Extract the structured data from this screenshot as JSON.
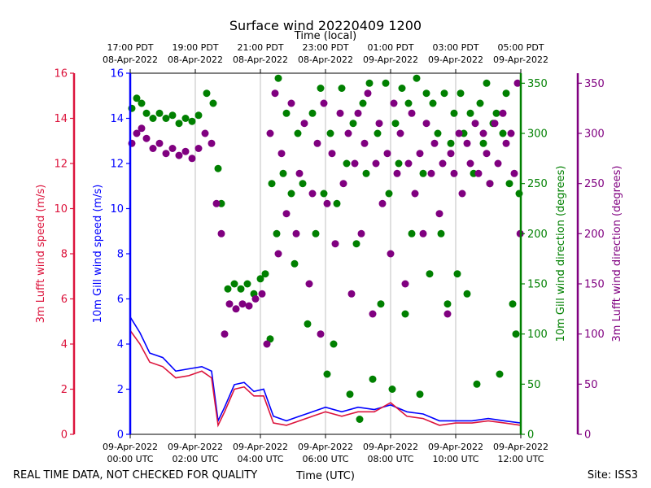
{
  "chart_data": {
    "type": "scatter",
    "title": "Surface wind 20220409 1200",
    "top_xlabel": "Time (local)",
    "xlabel": "Time (UTC)",
    "footer_left": "REAL TIME DATA, NOT CHECKED FOR QUALITY",
    "footer_right": "Site: ISS3",
    "xlim": [
      0,
      12
    ],
    "x_unit": "hours since 09-Apr-2022 00:00 UTC",
    "bottom_ticks": [
      {
        "x": 0,
        "line1": "09-Apr-2022",
        "line2": "00:00 UTC"
      },
      {
        "x": 2,
        "line1": "09-Apr-2022",
        "line2": "02:00 UTC"
      },
      {
        "x": 4,
        "line1": "09-Apr-2022",
        "line2": "04:00 UTC"
      },
      {
        "x": 6,
        "line1": "09-Apr-2022",
        "line2": "06:00 UTC"
      },
      {
        "x": 8,
        "line1": "09-Apr-2022",
        "line2": "08:00 UTC"
      },
      {
        "x": 10,
        "line1": "09-Apr-2022",
        "line2": "10:00 UTC"
      },
      {
        "x": 12,
        "line1": "09-Apr-2022",
        "line2": "12:00 UTC"
      }
    ],
    "top_ticks": [
      {
        "x": 0,
        "line1": "17:00 PDT",
        "line2": "08-Apr-2022"
      },
      {
        "x": 2,
        "line1": "19:00 PDT",
        "line2": "08-Apr-2022"
      },
      {
        "x": 4,
        "line1": "21:00 PDT",
        "line2": "08-Apr-2022"
      },
      {
        "x": 6,
        "line1": "23:00 PDT",
        "line2": "08-Apr-2022"
      },
      {
        "x": 8,
        "line1": "01:00 PDT",
        "line2": "09-Apr-2022"
      },
      {
        "x": 10,
        "line1": "03:00 PDT",
        "line2": "09-Apr-2022"
      },
      {
        "x": 12,
        "line1": "05:00 PDT",
        "line2": "09-Apr-2022"
      }
    ],
    "axes": [
      {
        "id": "lufft_speed",
        "label": "3m Lufft wind speed (m/s)",
        "color": "#dc143c",
        "range": [
          0,
          16
        ],
        "ticks": [
          0,
          2,
          4,
          6,
          8,
          10,
          12,
          14,
          16
        ]
      },
      {
        "id": "gill_speed",
        "label": "10m Gill wind speed (m/s)",
        "color": "#0000ff",
        "range": [
          0,
          16
        ],
        "ticks": [
          0,
          2,
          4,
          6,
          8,
          10,
          12,
          14,
          16
        ]
      },
      {
        "id": "gill_dir",
        "label": "10m Gill wind direction (degrees)",
        "color": "#008000",
        "range": [
          0,
          360
        ],
        "ticks": [
          0,
          50,
          100,
          150,
          200,
          250,
          300,
          350
        ]
      },
      {
        "id": "lufft_dir",
        "label": "3m Lufft wind direction (degrees)",
        "color": "#800080",
        "range": [
          0,
          360
        ],
        "ticks": [
          0,
          50,
          100,
          150,
          200,
          250,
          300,
          350
        ]
      }
    ],
    "series": [
      {
        "name": "10m Gill wind speed",
        "kind": "line",
        "axis": "gill_speed",
        "color": "#0000ff",
        "x": [
          0,
          0.3,
          0.6,
          1.0,
          1.4,
          1.8,
          2.2,
          2.5,
          2.7,
          2.9,
          3.2,
          3.5,
          3.8,
          4.1,
          4.4,
          4.8,
          5.2,
          5.6,
          6.0,
          6.5,
          7.0,
          7.5,
          8.0,
          8.5,
          9.0,
          9.5,
          10.0,
          10.5,
          11.0,
          11.5,
          12.0
        ],
        "values": [
          5.2,
          4.5,
          3.6,
          3.4,
          2.8,
          2.9,
          3.0,
          2.8,
          0.6,
          1.2,
          2.2,
          2.3,
          1.9,
          2.0,
          0.8,
          0.6,
          0.8,
          1.0,
          1.2,
          1.0,
          1.2,
          1.1,
          1.3,
          1.0,
          0.9,
          0.6,
          0.6,
          0.6,
          0.7,
          0.6,
          0.5
        ]
      },
      {
        "name": "3m Lufft wind speed",
        "kind": "line",
        "axis": "lufft_speed",
        "color": "#dc143c",
        "x": [
          0,
          0.3,
          0.6,
          1.0,
          1.4,
          1.8,
          2.2,
          2.5,
          2.7,
          2.9,
          3.2,
          3.5,
          3.8,
          4.1,
          4.4,
          4.8,
          5.2,
          5.6,
          6.0,
          6.5,
          7.0,
          7.5,
          8.0,
          8.5,
          9.0,
          9.5,
          10.0,
          10.5,
          11.0,
          11.5,
          12.0
        ],
        "values": [
          4.6,
          4.0,
          3.2,
          3.0,
          2.5,
          2.6,
          2.8,
          2.5,
          0.4,
          1.0,
          2.0,
          2.1,
          1.7,
          1.7,
          0.5,
          0.4,
          0.6,
          0.8,
          1.0,
          0.8,
          1.0,
          1.0,
          1.4,
          0.8,
          0.7,
          0.4,
          0.5,
          0.5,
          0.6,
          0.5,
          0.4
        ]
      },
      {
        "name": "10m Gill wind direction",
        "kind": "scatter",
        "axis": "gill_dir",
        "color": "#008000",
        "points": [
          [
            0.05,
            325
          ],
          [
            0.2,
            335
          ],
          [
            0.35,
            330
          ],
          [
            0.5,
            320
          ],
          [
            0.7,
            315
          ],
          [
            0.9,
            320
          ],
          [
            1.1,
            315
          ],
          [
            1.3,
            318
          ],
          [
            1.5,
            310
          ],
          [
            1.7,
            315
          ],
          [
            1.9,
            312
          ],
          [
            2.1,
            318
          ],
          [
            2.35,
            340
          ],
          [
            2.55,
            330
          ],
          [
            2.7,
            265
          ],
          [
            2.8,
            230
          ],
          [
            3.0,
            145
          ],
          [
            3.2,
            150
          ],
          [
            3.4,
            145
          ],
          [
            3.6,
            150
          ],
          [
            3.8,
            140
          ],
          [
            4.0,
            155
          ],
          [
            4.15,
            160
          ],
          [
            4.3,
            95
          ],
          [
            4.35,
            250
          ],
          [
            4.5,
            200
          ],
          [
            4.55,
            355
          ],
          [
            4.7,
            260
          ],
          [
            4.8,
            320
          ],
          [
            4.95,
            240
          ],
          [
            5.05,
            170
          ],
          [
            5.15,
            300
          ],
          [
            5.3,
            250
          ],
          [
            5.45,
            110
          ],
          [
            5.6,
            320
          ],
          [
            5.7,
            200
          ],
          [
            5.85,
            345
          ],
          [
            5.95,
            240
          ],
          [
            6.05,
            60
          ],
          [
            6.15,
            300
          ],
          [
            6.25,
            90
          ],
          [
            6.35,
            230
          ],
          [
            6.5,
            345
          ],
          [
            6.65,
            270
          ],
          [
            6.75,
            40
          ],
          [
            6.85,
            310
          ],
          [
            6.95,
            190
          ],
          [
            7.05,
            15
          ],
          [
            7.15,
            330
          ],
          [
            7.25,
            260
          ],
          [
            7.35,
            350
          ],
          [
            7.45,
            55
          ],
          [
            7.6,
            300
          ],
          [
            7.7,
            130
          ],
          [
            7.85,
            350
          ],
          [
            7.95,
            240
          ],
          [
            8.05,
            45
          ],
          [
            8.15,
            310
          ],
          [
            8.25,
            270
          ],
          [
            8.35,
            345
          ],
          [
            8.45,
            120
          ],
          [
            8.55,
            330
          ],
          [
            8.65,
            200
          ],
          [
            8.8,
            355
          ],
          [
            8.9,
            40
          ],
          [
            9.0,
            260
          ],
          [
            9.1,
            340
          ],
          [
            9.2,
            160
          ],
          [
            9.3,
            330
          ],
          [
            9.45,
            300
          ],
          [
            9.55,
            200
          ],
          [
            9.65,
            340
          ],
          [
            9.75,
            130
          ],
          [
            9.85,
            290
          ],
          [
            9.95,
            320
          ],
          [
            10.05,
            160
          ],
          [
            10.15,
            340
          ],
          [
            10.25,
            300
          ],
          [
            10.35,
            140
          ],
          [
            10.45,
            320
          ],
          [
            10.55,
            260
          ],
          [
            10.65,
            50
          ],
          [
            10.75,
            330
          ],
          [
            10.85,
            290
          ],
          [
            10.95,
            350
          ],
          [
            11.05,
            250
          ],
          [
            11.15,
            310
          ],
          [
            11.25,
            320
          ],
          [
            11.35,
            60
          ],
          [
            11.45,
            300
          ],
          [
            11.55,
            340
          ],
          [
            11.65,
            250
          ],
          [
            11.75,
            130
          ],
          [
            11.85,
            100
          ],
          [
            11.95,
            240
          ]
        ]
      },
      {
        "name": "3m Lufft wind direction",
        "kind": "scatter",
        "axis": "lufft_dir",
        "color": "#800080",
        "points": [
          [
            0.05,
            290
          ],
          [
            0.2,
            300
          ],
          [
            0.35,
            305
          ],
          [
            0.5,
            295
          ],
          [
            0.7,
            285
          ],
          [
            0.9,
            290
          ],
          [
            1.1,
            280
          ],
          [
            1.3,
            285
          ],
          [
            1.5,
            278
          ],
          [
            1.7,
            282
          ],
          [
            1.9,
            275
          ],
          [
            2.1,
            285
          ],
          [
            2.3,
            300
          ],
          [
            2.5,
            290
          ],
          [
            2.65,
            230
          ],
          [
            2.8,
            200
          ],
          [
            2.9,
            100
          ],
          [
            3.05,
            130
          ],
          [
            3.25,
            125
          ],
          [
            3.45,
            130
          ],
          [
            3.65,
            128
          ],
          [
            3.85,
            135
          ],
          [
            4.05,
            140
          ],
          [
            4.2,
            90
          ],
          [
            4.3,
            300
          ],
          [
            4.45,
            340
          ],
          [
            4.55,
            180
          ],
          [
            4.65,
            280
          ],
          [
            4.8,
            220
          ],
          [
            4.95,
            330
          ],
          [
            5.1,
            200
          ],
          [
            5.2,
            260
          ],
          [
            5.35,
            310
          ],
          [
            5.5,
            150
          ],
          [
            5.6,
            240
          ],
          [
            5.75,
            290
          ],
          [
            5.85,
            100
          ],
          [
            5.95,
            330
          ],
          [
            6.05,
            230
          ],
          [
            6.2,
            280
          ],
          [
            6.3,
            190
          ],
          [
            6.45,
            320
          ],
          [
            6.55,
            250
          ],
          [
            6.7,
            300
          ],
          [
            6.8,
            140
          ],
          [
            6.9,
            270
          ],
          [
            7.0,
            320
          ],
          [
            7.1,
            200
          ],
          [
            7.2,
            290
          ],
          [
            7.3,
            340
          ],
          [
            7.45,
            120
          ],
          [
            7.55,
            270
          ],
          [
            7.65,
            310
          ],
          [
            7.75,
            230
          ],
          [
            7.9,
            280
          ],
          [
            8.0,
            180
          ],
          [
            8.1,
            330
          ],
          [
            8.2,
            260
          ],
          [
            8.3,
            300
          ],
          [
            8.45,
            150
          ],
          [
            8.55,
            270
          ],
          [
            8.65,
            320
          ],
          [
            8.75,
            240
          ],
          [
            8.9,
            280
          ],
          [
            9.0,
            200
          ],
          [
            9.1,
            310
          ],
          [
            9.25,
            260
          ],
          [
            9.35,
            290
          ],
          [
            9.5,
            220
          ],
          [
            9.6,
            270
          ],
          [
            9.75,
            120
          ],
          [
            9.85,
            280
          ],
          [
            9.95,
            260
          ],
          [
            10.1,
            300
          ],
          [
            10.2,
            240
          ],
          [
            10.35,
            290
          ],
          [
            10.45,
            270
          ],
          [
            10.6,
            310
          ],
          [
            10.7,
            260
          ],
          [
            10.85,
            300
          ],
          [
            10.95,
            280
          ],
          [
            11.05,
            250
          ],
          [
            11.2,
            310
          ],
          [
            11.3,
            270
          ],
          [
            11.45,
            320
          ],
          [
            11.55,
            290
          ],
          [
            11.7,
            300
          ],
          [
            11.8,
            260
          ],
          [
            11.9,
            350
          ],
          [
            11.98,
            200
          ]
        ]
      }
    ]
  }
}
